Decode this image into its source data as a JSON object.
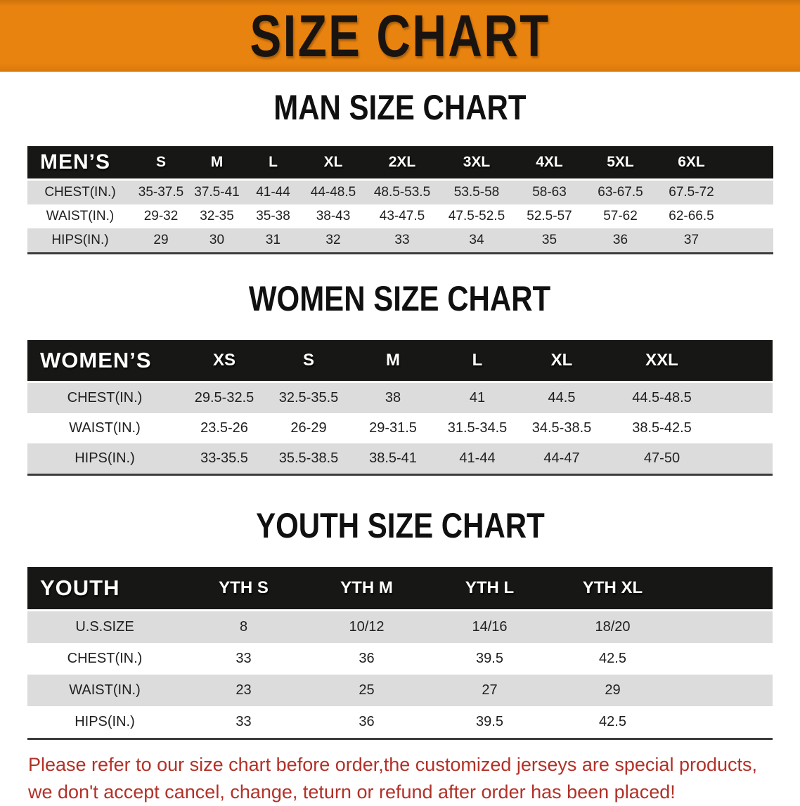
{
  "banner": {
    "title": "SIZE CHART"
  },
  "sections": [
    {
      "heading": "MAN SIZE CHART",
      "label": "MEN’S",
      "columns": [
        "S",
        "M",
        "L",
        "XL",
        "2XL",
        "3XL",
        "4XL",
        "5XL",
        "6XL"
      ],
      "rows": [
        {
          "label": "CHEST(IN.)",
          "values": [
            "35-37.5",
            "37.5-41",
            "41-44",
            "44-48.5",
            "48.5-53.5",
            "53.5-58",
            "58-63",
            "63-67.5",
            "67.5-72"
          ]
        },
        {
          "label": "WAIST(IN.)",
          "values": [
            "29-32",
            "32-35",
            "35-38",
            "38-43",
            "43-47.5",
            "47.5-52.5",
            "52.5-57",
            "57-62",
            "62-66.5"
          ]
        },
        {
          "label": "HIPS(IN.)",
          "values": [
            "29",
            "30",
            "31",
            "32",
            "33",
            "34",
            "35",
            "36",
            "37"
          ]
        }
      ]
    },
    {
      "heading": "WOMEN SIZE CHART",
      "label": "WOMEN’S",
      "columns": [
        "XS",
        "S",
        "M",
        "L",
        "XL",
        "XXL"
      ],
      "rows": [
        {
          "label": "CHEST(IN.)",
          "values": [
            "29.5-32.5",
            "32.5-35.5",
            "38",
            "41",
            "44.5",
            "44.5-48.5"
          ]
        },
        {
          "label": "WAIST(IN.)",
          "values": [
            "23.5-26",
            "26-29",
            "29-31.5",
            "31.5-34.5",
            "34.5-38.5",
            "38.5-42.5"
          ]
        },
        {
          "label": "HIPS(IN.)",
          "values": [
            "33-35.5",
            "35.5-38.5",
            "38.5-41",
            "41-44",
            "44-47",
            "47-50"
          ]
        }
      ]
    },
    {
      "heading": "YOUTH SIZE CHART",
      "label": "YOUTH",
      "columns": [
        "YTH S",
        "YTH M",
        "YTH L",
        "YTH XL"
      ],
      "rows": [
        {
          "label": "U.S.SIZE",
          "values": [
            "8",
            "10/12",
            "14/16",
            "18/20"
          ]
        },
        {
          "label": "CHEST(IN.)",
          "values": [
            "33",
            "36",
            "39.5",
            "42.5"
          ]
        },
        {
          "label": "WAIST(IN.)",
          "values": [
            "23",
            "25",
            "27",
            "29"
          ]
        },
        {
          "label": "HIPS(IN.)",
          "values": [
            "33",
            "36",
            "39.5",
            "42.5"
          ]
        }
      ]
    }
  ],
  "disclaimer": {
    "line1": "Please refer to our size chart before order,the customized jerseys are special products,",
    "line2": "we don't accept cancel, change, teturn or refund after order has been placed!"
  },
  "colors": {
    "banner_bg": "#E8830F",
    "banner_text": "#1A1410",
    "header_bar_bg": "#171715",
    "header_bar_text": "#FFFFFF",
    "shaded_row_bg": "#DCDCDC",
    "table_text": "#1F1F1F",
    "disclaimer_text": "#B23128"
  }
}
